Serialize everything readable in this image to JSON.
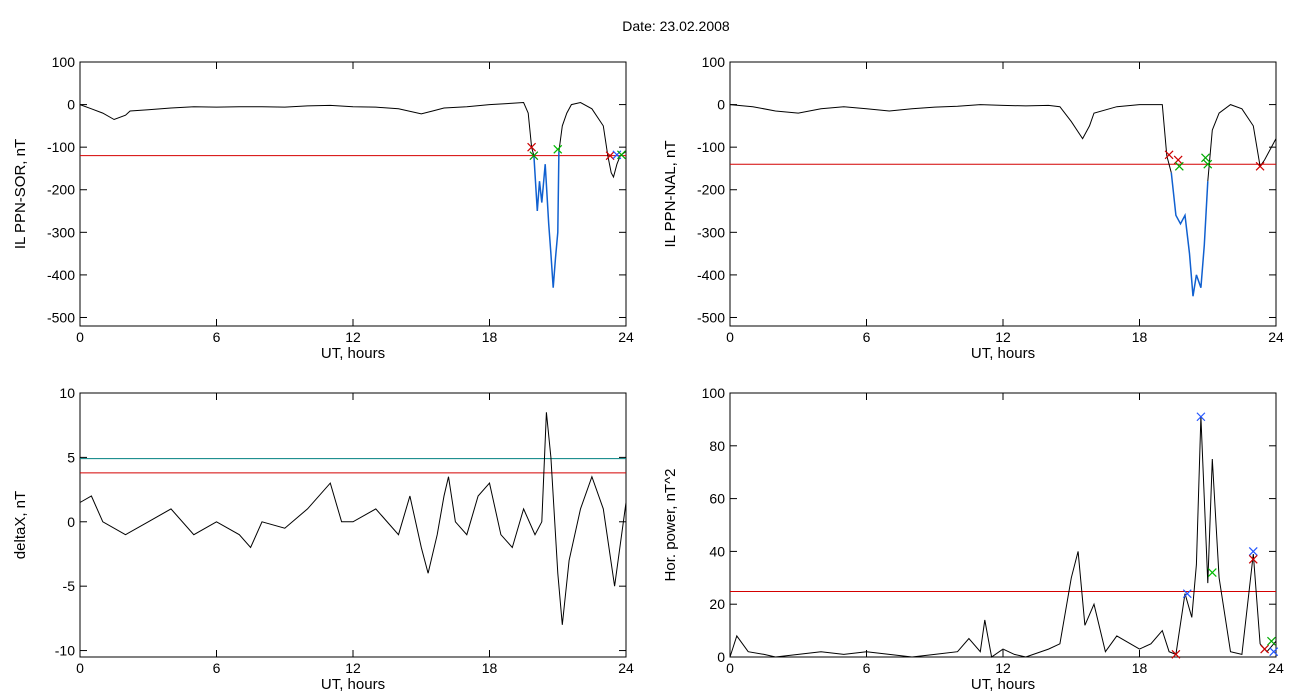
{
  "page": {
    "title": "Date:  23.02.2008"
  },
  "chart_data": [
    {
      "type": "line",
      "xlabel": "UT, hours",
      "ylabel": "IL PPN-SOR, nT",
      "xlim": [
        0,
        24
      ],
      "ylim": [
        -520,
        100
      ],
      "xticks": [
        0,
        6,
        12,
        18,
        24
      ],
      "yticks": [
        100,
        0,
        -100,
        -200,
        -300,
        -400,
        -500
      ],
      "threshold_lines": [
        {
          "y": -120,
          "color": "#d40000"
        }
      ],
      "series": [
        {
          "color": "#000000",
          "points": [
            [
              0,
              0
            ],
            [
              0.5,
              -10
            ],
            [
              1,
              -20
            ],
            [
              1.5,
              -35
            ],
            [
              2,
              -25
            ],
            [
              2.2,
              -15
            ],
            [
              3,
              -12
            ],
            [
              4,
              -8
            ],
            [
              5,
              -5
            ],
            [
              6,
              -6
            ],
            [
              7,
              -5
            ],
            [
              8,
              -5
            ],
            [
              9,
              -6
            ],
            [
              10,
              -3
            ],
            [
              11,
              -2
            ],
            [
              12,
              -5
            ],
            [
              13,
              -6
            ],
            [
              14,
              -10
            ],
            [
              15,
              -22
            ],
            [
              15.5,
              -15
            ],
            [
              16,
              -8
            ],
            [
              17,
              -5
            ],
            [
              18,
              0
            ],
            [
              19,
              3
            ],
            [
              19.5,
              5
            ],
            [
              19.7,
              -20
            ],
            [
              19.85,
              -100
            ],
            [
              19.95,
              -120
            ]
          ]
        },
        {
          "color": "#1060d0",
          "points": [
            [
              19.95,
              -120
            ],
            [
              20.1,
              -250
            ],
            [
              20.2,
              -180
            ],
            [
              20.3,
              -230
            ],
            [
              20.45,
              -140
            ],
            [
              20.6,
              -280
            ],
            [
              20.7,
              -350
            ],
            [
              20.8,
              -430
            ],
            [
              20.9,
              -360
            ],
            [
              21,
              -300
            ],
            [
              21.05,
              -110
            ]
          ]
        },
        {
          "color": "#000000",
          "points": [
            [
              21.05,
              -110
            ],
            [
              21.2,
              -50
            ],
            [
              21.4,
              -20
            ],
            [
              21.6,
              0
            ],
            [
              22,
              5
            ],
            [
              22.5,
              -10
            ],
            [
              23,
              -50
            ],
            [
              23.2,
              -120
            ],
            [
              23.35,
              -160
            ],
            [
              23.45,
              -170
            ],
            [
              23.6,
              -140
            ],
            [
              23.75,
              -120
            ],
            [
              24,
              -110
            ]
          ]
        }
      ],
      "markers": [
        {
          "x": 19.85,
          "y": -100,
          "color": "#cc0000"
        },
        {
          "x": 19.95,
          "y": -120,
          "color": "#009900"
        },
        {
          "x": 21.0,
          "y": -105,
          "color": "#00bb00"
        },
        {
          "x": 23.3,
          "y": -120,
          "color": "#cc0000"
        },
        {
          "x": 23.6,
          "y": -118,
          "color": "#2255ff"
        },
        {
          "x": 23.8,
          "y": -118,
          "color": "#00aa00"
        }
      ]
    },
    {
      "type": "line",
      "xlabel": "UT, hours",
      "ylabel": "IL PPN-NAL, nT",
      "xlim": [
        0,
        24
      ],
      "ylim": [
        -520,
        100
      ],
      "xticks": [
        0,
        6,
        12,
        18,
        24
      ],
      "yticks": [
        100,
        0,
        -100,
        -200,
        -300,
        -400,
        -500
      ],
      "threshold_lines": [
        {
          "y": -140,
          "color": "#d40000"
        }
      ],
      "series": [
        {
          "color": "#000000",
          "points": [
            [
              0,
              0
            ],
            [
              1,
              -5
            ],
            [
              2,
              -15
            ],
            [
              3,
              -20
            ],
            [
              4,
              -10
            ],
            [
              5,
              -5
            ],
            [
              6,
              -10
            ],
            [
              7,
              -15
            ],
            [
              8,
              -10
            ],
            [
              9,
              -6
            ],
            [
              10,
              -4
            ],
            [
              11,
              0
            ],
            [
              12,
              -2
            ],
            [
              13,
              -3
            ],
            [
              14,
              -2
            ],
            [
              14.5,
              -5
            ],
            [
              15,
              -40
            ],
            [
              15.5,
              -80
            ],
            [
              15.8,
              -50
            ],
            [
              16,
              -20
            ],
            [
              17,
              -5
            ],
            [
              18,
              0
            ],
            [
              19,
              0
            ],
            [
              19.2,
              -120
            ],
            [
              19.4,
              -160
            ]
          ]
        },
        {
          "color": "#1060d0",
          "points": [
            [
              19.4,
              -160
            ],
            [
              19.6,
              -260
            ],
            [
              19.8,
              -280
            ],
            [
              20,
              -260
            ],
            [
              20.2,
              -350
            ],
            [
              20.35,
              -450
            ],
            [
              20.5,
              -400
            ],
            [
              20.7,
              -430
            ],
            [
              20.85,
              -330
            ],
            [
              21,
              -180
            ]
          ]
        },
        {
          "color": "#000000",
          "points": [
            [
              21,
              -180
            ],
            [
              21.2,
              -60
            ],
            [
              21.5,
              -20
            ],
            [
              22,
              0
            ],
            [
              22.5,
              -10
            ],
            [
              23,
              -50
            ],
            [
              23.3,
              -145
            ],
            [
              23.5,
              -130
            ],
            [
              24,
              -80
            ]
          ]
        }
      ],
      "markers": [
        {
          "x": 19.3,
          "y": -118,
          "color": "#cc0000"
        },
        {
          "x": 19.7,
          "y": -130,
          "color": "#cc0000"
        },
        {
          "x": 19.75,
          "y": -145,
          "color": "#00aa00"
        },
        {
          "x": 20.9,
          "y": -125,
          "color": "#00aa00"
        },
        {
          "x": 21.0,
          "y": -140,
          "color": "#00aa00"
        },
        {
          "x": 23.3,
          "y": -145,
          "color": "#cc0000"
        }
      ]
    },
    {
      "type": "line",
      "xlabel": "UT, hours",
      "ylabel": "deltaX, nT",
      "xlim": [
        0,
        24
      ],
      "ylim": [
        -10.5,
        10
      ],
      "xticks": [
        0,
        6,
        12,
        18,
        24
      ],
      "yticks": [
        10,
        5,
        0,
        -5,
        -10
      ],
      "threshold_lines": [
        {
          "y": 4.9,
          "color": "#008080"
        },
        {
          "y": 3.8,
          "color": "#d40000"
        }
      ],
      "series": [
        {
          "color": "#000000",
          "points": [
            [
              0,
              1.5
            ],
            [
              0.5,
              2
            ],
            [
              1,
              0
            ],
            [
              2,
              -1
            ],
            [
              3,
              0
            ],
            [
              4,
              1
            ],
            [
              5,
              -1
            ],
            [
              6,
              0
            ],
            [
              7,
              -1
            ],
            [
              7.5,
              -2
            ],
            [
              8,
              0
            ],
            [
              9,
              -0.5
            ],
            [
              10,
              1
            ],
            [
              11,
              3
            ],
            [
              11.5,
              0
            ],
            [
              12,
              0
            ],
            [
              13,
              1
            ],
            [
              14,
              -1
            ],
            [
              14.5,
              2
            ],
            [
              15,
              -2
            ],
            [
              15.3,
              -4
            ],
            [
              15.7,
              -1
            ],
            [
              16,
              2
            ],
            [
              16.2,
              3.5
            ],
            [
              16.5,
              0
            ],
            [
              17,
              -1
            ],
            [
              17.5,
              2
            ],
            [
              18,
              3
            ],
            [
              18.5,
              -1
            ],
            [
              19,
              -2
            ],
            [
              19.5,
              1
            ],
            [
              20,
              -1
            ],
            [
              20.3,
              0
            ],
            [
              20.5,
              8.5
            ],
            [
              20.7,
              5
            ],
            [
              21,
              -4
            ],
            [
              21.2,
              -8
            ],
            [
              21.5,
              -3
            ],
            [
              22,
              1
            ],
            [
              22.5,
              3.5
            ],
            [
              23,
              1
            ],
            [
              23.5,
              -5
            ],
            [
              24,
              1.5
            ]
          ]
        }
      ],
      "markers": []
    },
    {
      "type": "line",
      "xlabel": "UT, hours",
      "ylabel": "Hor. power, nT^2",
      "xlim": [
        0,
        24
      ],
      "ylim": [
        0,
        100
      ],
      "xticks": [
        0,
        6,
        12,
        18,
        24
      ],
      "yticks": [
        100,
        80,
        60,
        40,
        20,
        0
      ],
      "threshold_lines": [
        {
          "y": 24.8,
          "color": "#d40000"
        }
      ],
      "series": [
        {
          "color": "#000000",
          "points": [
            [
              0,
              0
            ],
            [
              0.3,
              8
            ],
            [
              0.8,
              2
            ],
            [
              1.5,
              1
            ],
            [
              2,
              0
            ],
            [
              3,
              1
            ],
            [
              4,
              2
            ],
            [
              5,
              1
            ],
            [
              6,
              2
            ],
            [
              7,
              1
            ],
            [
              8,
              0
            ],
            [
              9,
              1
            ],
            [
              10,
              2
            ],
            [
              10.5,
              7
            ],
            [
              11,
              2
            ],
            [
              11.2,
              14
            ],
            [
              11.5,
              0
            ],
            [
              12,
              3
            ],
            [
              12.5,
              1
            ],
            [
              13,
              0
            ],
            [
              14,
              3
            ],
            [
              14.5,
              5
            ],
            [
              15,
              30
            ],
            [
              15.3,
              40
            ],
            [
              15.6,
              12
            ],
            [
              16,
              20
            ],
            [
              16.5,
              2
            ],
            [
              17,
              8
            ],
            [
              18,
              3
            ],
            [
              18.5,
              5
            ],
            [
              19,
              10
            ],
            [
              19.3,
              2
            ],
            [
              19.6,
              1
            ],
            [
              20,
              24
            ],
            [
              20.3,
              15
            ],
            [
              20.5,
              35
            ],
            [
              20.7,
              91
            ],
            [
              21,
              28
            ],
            [
              21.2,
              75
            ],
            [
              21.5,
              30
            ],
            [
              22,
              2
            ],
            [
              22.5,
              1
            ],
            [
              23,
              39
            ],
            [
              23.3,
              5
            ],
            [
              23.6,
              2
            ],
            [
              24,
              6
            ]
          ]
        }
      ],
      "markers": [
        {
          "x": 19.6,
          "y": 1,
          "color": "#cc0000"
        },
        {
          "x": 20.1,
          "y": 24,
          "color": "#2255ff"
        },
        {
          "x": 20.7,
          "y": 91,
          "color": "#2255ff"
        },
        {
          "x": 21.2,
          "y": 32,
          "color": "#00bb00"
        },
        {
          "x": 23.0,
          "y": 40,
          "color": "#2255ff"
        },
        {
          "x": 23.0,
          "y": 37,
          "color": "#cc0000"
        },
        {
          "x": 23.5,
          "y": 3,
          "color": "#cc0000"
        },
        {
          "x": 23.8,
          "y": 6,
          "color": "#00aa00"
        },
        {
          "x": 23.9,
          "y": 2,
          "color": "#2255ff"
        }
      ]
    }
  ]
}
